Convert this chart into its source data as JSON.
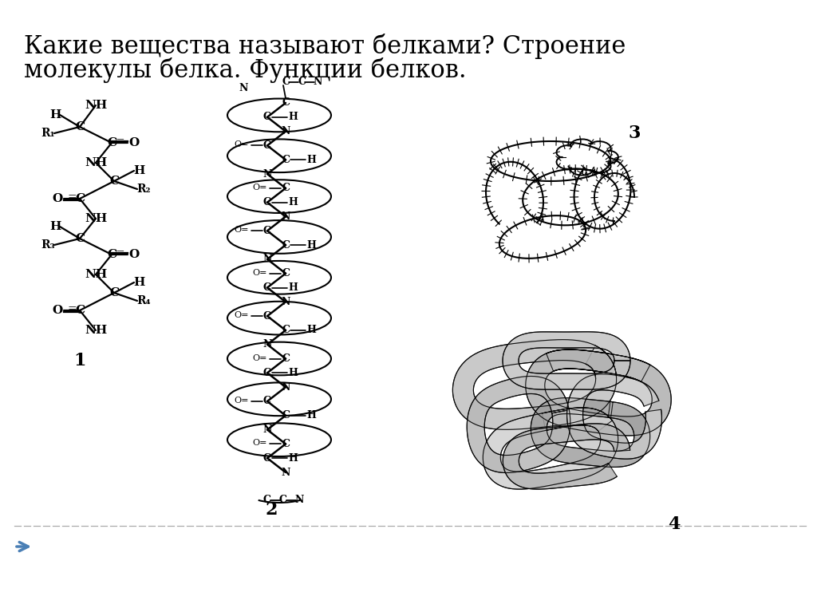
{
  "title_line1": "Какие вещества называют белками? Строение",
  "title_line2": "молекулы белка. Функции белков.",
  "background_color": "#ffffff",
  "title_fontsize": 22,
  "title_color": "#222222",
  "label_fontsize": 16,
  "label_color": "#111111",
  "diagram_labels": [
    "1",
    "2",
    "3",
    "4"
  ],
  "dashed_line_color": "#aaaaaa",
  "arrow_color": "#4a7fb5",
  "figure_width": 10.24,
  "figure_height": 7.67
}
